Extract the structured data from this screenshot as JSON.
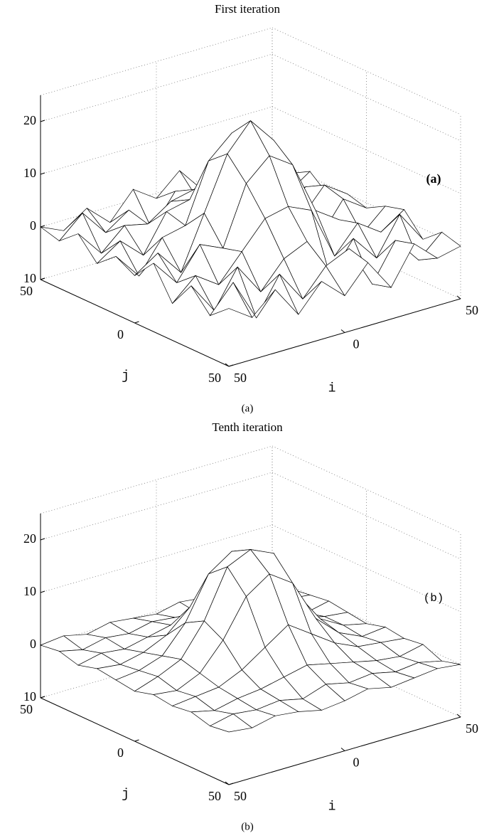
{
  "chart_data": [
    {
      "type": "surface",
      "title": "First iteration",
      "annotation": "(a)",
      "caption": "(a)",
      "x_label": "i",
      "y_label": "j",
      "xlim": [
        -50,
        50
      ],
      "ylim": [
        -50,
        50
      ],
      "zlim": [
        -10,
        25
      ],
      "xticks": [
        {
          "value": -50,
          "label": "50"
        },
        0,
        50
      ],
      "yticks": [
        {
          "value": -50,
          "label": "50"
        },
        0,
        50
      ],
      "zticks": [
        {
          "value": -10,
          "label": "10"
        },
        0,
        10,
        20
      ],
      "grid": true,
      "x": [
        -50,
        -40,
        -30,
        -20,
        -10,
        0,
        10,
        20,
        30,
        40,
        50
      ],
      "y": [
        -50,
        -40,
        -30,
        -20,
        -10,
        0,
        10,
        20,
        30,
        40,
        50
      ],
      "z": [
        [
          0,
          -2,
          1,
          -3,
          2,
          -1,
          3,
          -2,
          1,
          -3,
          0
        ],
        [
          -1,
          3,
          -2,
          1,
          -4,
          2,
          -1,
          3,
          -2,
          2,
          -1
        ],
        [
          2,
          -3,
          1,
          0,
          3,
          4,
          2,
          -3,
          1,
          -2,
          1
        ],
        [
          -2,
          1,
          -3,
          4,
          5,
          9,
          6,
          2,
          -3,
          1,
          -2
        ],
        [
          1,
          -4,
          2,
          3,
          14,
          18,
          13,
          5,
          -2,
          3,
          0
        ],
        [
          -1,
          2,
          -3,
          7,
          17,
          22,
          17,
          6,
          -4,
          2,
          -1
        ],
        [
          3,
          -2,
          4,
          2,
          13,
          17,
          14,
          4,
          1,
          -3,
          1
        ],
        [
          -3,
          1,
          -2,
          3,
          8,
          9,
          7,
          -3,
          2,
          -1,
          2
        ],
        [
          2,
          -4,
          3,
          -3,
          2,
          4,
          -4,
          2,
          -3,
          4,
          -2
        ],
        [
          -2,
          3,
          -5,
          2,
          -4,
          1,
          3,
          -5,
          2,
          -3,
          1
        ],
        [
          1,
          -2,
          2,
          -4,
          1,
          -3,
          2,
          -4,
          3,
          -1,
          0
        ]
      ]
    },
    {
      "type": "surface",
      "title": "Tenth iteration",
      "annotation": "(b)",
      "caption": "(b)",
      "x_label": "i",
      "y_label": "j",
      "xlim": [
        -50,
        50
      ],
      "ylim": [
        -50,
        50
      ],
      "zlim": [
        -10,
        25
      ],
      "xticks": [
        {
          "value": -50,
          "label": "50"
        },
        0,
        50
      ],
      "yticks": [
        {
          "value": -50,
          "label": "50"
        },
        0,
        50
      ],
      "zticks": [
        {
          "value": -10,
          "label": "10"
        },
        0,
        10,
        20
      ],
      "grid": true,
      "x": [
        -50,
        -40,
        -30,
        -20,
        -10,
        0,
        10,
        20,
        30,
        40,
        50
      ],
      "y": [
        -50,
        -40,
        -30,
        -20,
        -10,
        0,
        10,
        20,
        30,
        40,
        50
      ],
      "z": [
        [
          0,
          0.5,
          -0.5,
          0.5,
          0,
          -0.5,
          0.5,
          0,
          -0.5,
          0.5,
          0
        ],
        [
          0.5,
          -0.5,
          0.5,
          0,
          1,
          0.5,
          0,
          -0.5,
          0.5,
          0,
          -0.5
        ],
        [
          -0.5,
          0.5,
          0,
          1,
          2,
          3,
          2,
          1,
          0,
          0.5,
          0
        ],
        [
          0.5,
          0,
          1,
          3,
          7,
          9,
          7,
          3,
          1,
          -0.5,
          0.5
        ],
        [
          0,
          0.5,
          2,
          7,
          15,
          18,
          15,
          7,
          1.5,
          0.5,
          0
        ],
        [
          -0.5,
          1,
          3,
          9,
          18,
          20,
          18,
          9,
          3,
          0.5,
          -0.5
        ],
        [
          0.5,
          0,
          2,
          7,
          14,
          17,
          14,
          6,
          2,
          0,
          0.5
        ],
        [
          0,
          0.5,
          1,
          3,
          6,
          9,
          6,
          3,
          1,
          0.5,
          0
        ],
        [
          0.5,
          -0.5,
          0.5,
          1,
          2,
          3,
          2,
          1,
          0,
          -0.5,
          0.5
        ],
        [
          -0.5,
          0.5,
          0,
          0.5,
          -0.5,
          1,
          0,
          0.5,
          -0.5,
          0,
          -1
        ],
        [
          0,
          -0.5,
          0.5,
          0,
          -1,
          -0.5,
          0.5,
          -0.5,
          0,
          0.5,
          0
        ]
      ]
    }
  ]
}
